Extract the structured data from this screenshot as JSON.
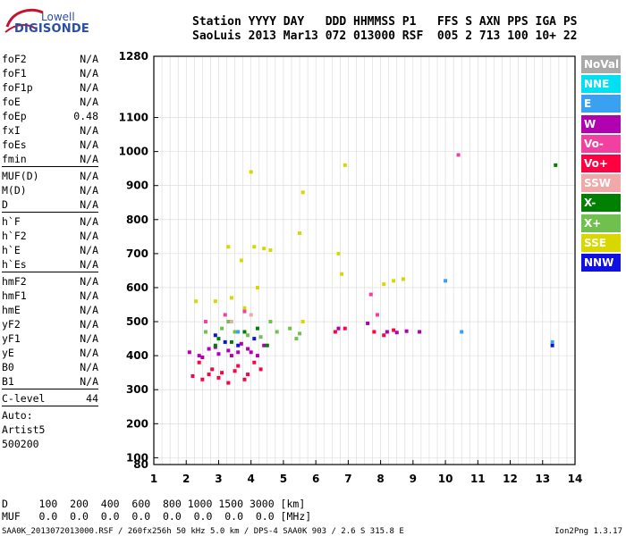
{
  "logo": {
    "top": "Lowell",
    "bottom": "DIGISONDE"
  },
  "header": {
    "line1": "Station YYYY DAY   DDD HHMMSS P1   FFS S AXN PPS IGA PS",
    "line2": "SaoLuis 2013 Mar13 072 013000 RSF  005 2 713 100 10+ 22"
  },
  "parameters": [
    {
      "label": "foF2",
      "value": "N/A"
    },
    {
      "label": "foF1",
      "value": "N/A"
    },
    {
      "label": "foF1p",
      "value": "N/A"
    },
    {
      "label": "foE",
      "value": "N/A"
    },
    {
      "label": "foEp",
      "value": "0.48"
    },
    {
      "label": "fxI",
      "value": "N/A"
    },
    {
      "label": "foEs",
      "value": "N/A"
    },
    {
      "label": "fmin",
      "value": "N/A"
    },
    {
      "label": "MUF(D)",
      "value": "N/A"
    },
    {
      "label": "M(D)",
      "value": "N/A"
    },
    {
      "label": "D",
      "value": "N/A"
    },
    {
      "label": "h`F",
      "value": "N/A"
    },
    {
      "label": "h`F2",
      "value": "N/A"
    },
    {
      "label": "h`E",
      "value": "N/A"
    },
    {
      "label": "h`Es",
      "value": "N/A"
    },
    {
      "label": "hmF2",
      "value": "N/A"
    },
    {
      "label": "hmF1",
      "value": "N/A"
    },
    {
      "label": "hmE",
      "value": "N/A"
    },
    {
      "label": "yF2",
      "value": "N/A"
    },
    {
      "label": "yF1",
      "value": "N/A"
    },
    {
      "label": "yE",
      "value": "N/A"
    },
    {
      "label": "B0",
      "value": "N/A"
    },
    {
      "label": "B1",
      "value": "N/A"
    },
    {
      "label": "C-level",
      "value": "44"
    },
    {
      "label": "Auto:",
      "value": ""
    },
    {
      "label": "Artist5",
      "value": ""
    },
    {
      "label": "500200",
      "value": ""
    }
  ],
  "bottom": {
    "d_line": "D     100  200  400  600  800 1000 1500 3000 [km]",
    "muf_line": "MUF   0.0  0.0  0.0  0.0  0.0  0.0  0.0  0.0 [MHz]"
  },
  "footer": "SAA0K_2013072013000.RSF / 260fx256h 50 kHz 5.0 km / DPS-4 SAA0K 903 / 2.6 S 315.8 E",
  "version": "Ion2Png 1.3.17",
  "legend": [
    {
      "label": "NoVal",
      "color": "#a9a9a9"
    },
    {
      "label": "NNE",
      "color": "#00e0f0"
    },
    {
      "label": "E",
      "color": "#3aa0f0"
    },
    {
      "label": "W",
      "color": "#b000b0"
    },
    {
      "label": "Vo-",
      "color": "#f040a0"
    },
    {
      "label": "Vo+",
      "color": "#ff0040"
    },
    {
      "label": "SSW",
      "color": "#f0a8a8"
    },
    {
      "label": "X-",
      "color": "#008000"
    },
    {
      "label": "X+",
      "color": "#70c050"
    },
    {
      "label": "SSE",
      "color": "#d8d800"
    },
    {
      "label": "NNW",
      "color": "#1010e0"
    }
  ],
  "chart_data": {
    "type": "scatter",
    "x_ticks": [
      1,
      2,
      3,
      4,
      5,
      6,
      7,
      8,
      9,
      10,
      11,
      12,
      13,
      14
    ],
    "y_ticks": [
      80,
      100,
      200,
      300,
      400,
      500,
      600,
      700,
      800,
      900,
      1000,
      1100,
      1280
    ],
    "xlim": [
      1,
      14
    ],
    "ylim": [
      80,
      1280
    ],
    "grid": true,
    "clusters": [
      {
        "name": "Vo+",
        "color": "#ff0040",
        "points": [
          [
            2.2,
            340
          ],
          [
            2.5,
            330
          ],
          [
            2.8,
            360
          ],
          [
            3.1,
            350
          ],
          [
            3.3,
            320
          ],
          [
            3.6,
            370
          ],
          [
            3.9,
            345
          ],
          [
            4.1,
            380
          ],
          [
            2.4,
            380
          ],
          [
            2.7,
            345
          ],
          [
            3.0,
            335
          ],
          [
            3.5,
            355
          ],
          [
            3.8,
            330
          ],
          [
            4.3,
            360
          ],
          [
            6.6,
            470
          ],
          [
            6.9,
            480
          ],
          [
            7.8,
            470
          ],
          [
            8.1,
            460
          ],
          [
            8.4,
            475
          ]
        ]
      },
      {
        "name": "W",
        "color": "#b000b0",
        "points": [
          [
            2.1,
            410
          ],
          [
            2.4,
            400
          ],
          [
            2.7,
            420
          ],
          [
            3.0,
            405
          ],
          [
            3.3,
            415
          ],
          [
            3.6,
            410
          ],
          [
            3.9,
            420
          ],
          [
            4.2,
            400
          ],
          [
            4.4,
            430
          ],
          [
            2.5,
            395
          ],
          [
            2.9,
            425
          ],
          [
            3.4,
            400
          ],
          [
            3.7,
            435
          ],
          [
            4.0,
            410
          ],
          [
            8.2,
            470
          ],
          [
            8.5,
            468
          ],
          [
            8.8,
            472
          ],
          [
            9.2,
            470
          ],
          [
            7.6,
            495
          ],
          [
            6.7,
            480
          ]
        ]
      },
      {
        "name": "SSE",
        "color": "#d8d800",
        "points": [
          [
            2.3,
            560
          ],
          [
            2.9,
            560
          ],
          [
            3.4,
            570
          ],
          [
            3.8,
            540
          ],
          [
            4.1,
            720
          ],
          [
            4.4,
            715
          ],
          [
            4.6,
            710
          ],
          [
            3.3,
            720
          ],
          [
            3.7,
            680
          ],
          [
            4.2,
            600
          ],
          [
            5.5,
            760
          ],
          [
            5.6,
            880
          ],
          [
            6.7,
            700
          ],
          [
            6.8,
            640
          ],
          [
            8.1,
            610
          ],
          [
            8.4,
            620
          ],
          [
            8.7,
            625
          ],
          [
            6.9,
            960
          ],
          [
            4.0,
            940
          ],
          [
            5.6,
            500
          ]
        ]
      },
      {
        "name": "X+",
        "color": "#70c050",
        "points": [
          [
            3.1,
            480
          ],
          [
            3.5,
            470
          ],
          [
            3.9,
            460
          ],
          [
            4.3,
            455
          ],
          [
            4.8,
            470
          ],
          [
            5.2,
            480
          ],
          [
            5.5,
            465
          ],
          [
            4.6,
            500
          ],
          [
            3.3,
            500
          ],
          [
            2.6,
            470
          ],
          [
            5.4,
            450
          ]
        ]
      },
      {
        "name": "X-",
        "color": "#008000",
        "points": [
          [
            3.0,
            450
          ],
          [
            3.4,
            440
          ],
          [
            3.8,
            470
          ],
          [
            4.2,
            480
          ],
          [
            4.5,
            430
          ],
          [
            2.9,
            430
          ],
          [
            13.4,
            960
          ]
        ]
      },
      {
        "name": "NNW",
        "color": "#1010e0",
        "points": [
          [
            3.2,
            440
          ],
          [
            3.6,
            430
          ],
          [
            2.9,
            460
          ],
          [
            4.1,
            450
          ],
          [
            13.3,
            430
          ]
        ]
      },
      {
        "name": "Vo-",
        "color": "#f040a0",
        "points": [
          [
            2.6,
            500
          ],
          [
            3.2,
            520
          ],
          [
            3.8,
            530
          ],
          [
            7.9,
            520
          ],
          [
            7.7,
            580
          ],
          [
            10.4,
            990
          ]
        ]
      },
      {
        "name": "E",
        "color": "#3aa0f0",
        "points": [
          [
            3.6,
            470
          ],
          [
            10.0,
            620
          ],
          [
            10.5,
            470
          ],
          [
            13.3,
            440
          ]
        ]
      },
      {
        "name": "SSW",
        "color": "#f0a8a8",
        "points": [
          [
            3.4,
            500
          ],
          [
            4.0,
            520
          ]
        ]
      }
    ]
  }
}
